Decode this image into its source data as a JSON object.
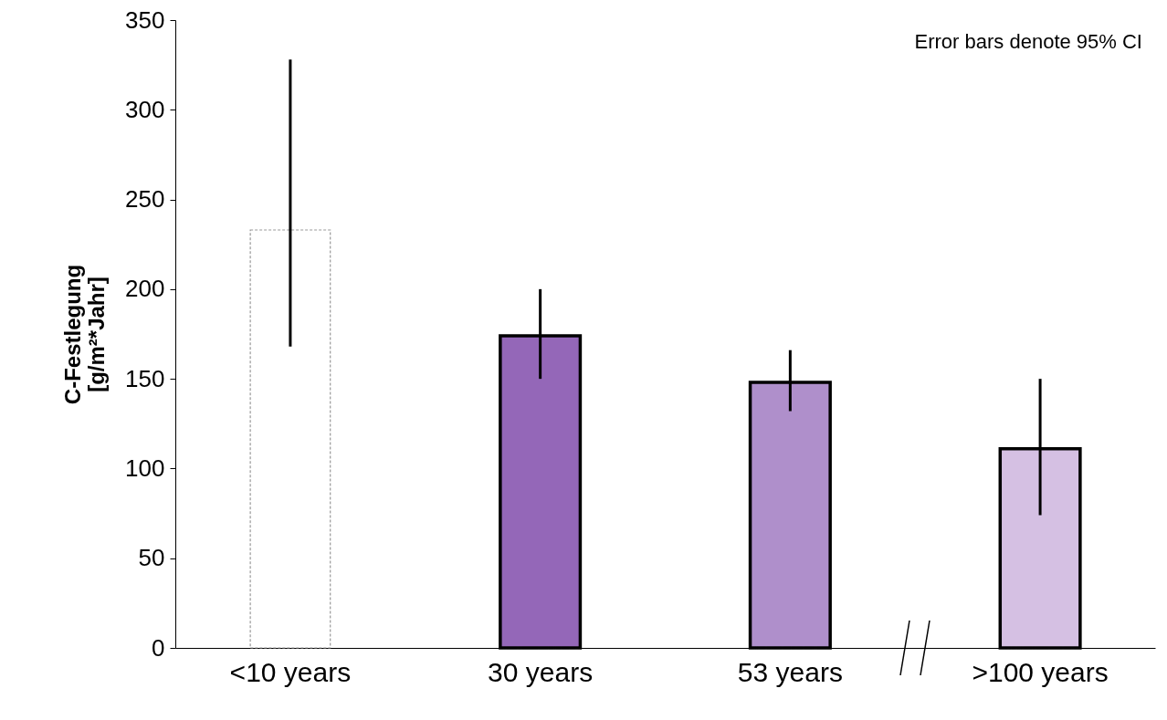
{
  "chart_data": {
    "type": "bar",
    "ylabel": "C-Festlegung\n[g/m²*Jahr]",
    "categories": [
      "<10 years",
      "30 years",
      "53 years",
      ">100 years"
    ],
    "values": [
      233,
      174,
      148,
      111
    ],
    "colors": [
      "#ffffff",
      "#9467b8",
      "#af8fcb",
      "#d5c0e3"
    ],
    "errors": [
      [
        168,
        328
      ],
      [
        150,
        200
      ],
      [
        132,
        166
      ],
      [
        74,
        150
      ]
    ],
    "ylim": [
      0,
      350
    ],
    "yticks": [
      0,
      50,
      100,
      150,
      200,
      250,
      300,
      350
    ],
    "grid": false,
    "annotations": [
      "Error bars denote 95% CI"
    ]
  }
}
